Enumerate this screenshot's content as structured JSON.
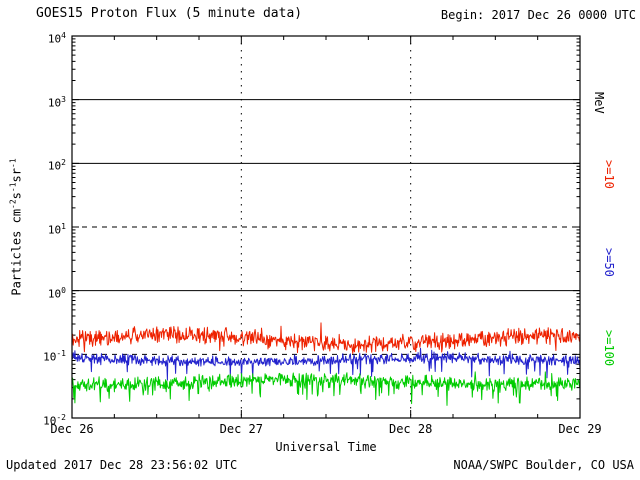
{
  "header": {
    "title": "GOES15 Proton Flux (5 minute data)",
    "begin": "Begin: 2017 Dec 26 0000 UTC"
  },
  "footer": {
    "updated": "Updated 2017 Dec 28 23:56:02 UTC",
    "source": "NOAA/SWPC Boulder, CO USA"
  },
  "chart_data": {
    "type": "line",
    "title": "GOES15 Proton Flux (5 minute data)",
    "xlabel": "Universal Time",
    "ylabel": "Particles cm-2s-1sr-1",
    "ylabel_segments": [
      {
        "text": "Particles  cm"
      },
      {
        "sup": "-2"
      },
      {
        "text": "s"
      },
      {
        "sup": "-1"
      },
      {
        "text": "sr"
      },
      {
        "sup": "-1"
      }
    ],
    "x_ticks": [
      "Dec 26",
      "Dec 27",
      "Dec 28",
      "Dec 29"
    ],
    "x_range_days": 3,
    "y_scale": "log",
    "ylim": [
      0.01,
      10000
    ],
    "y_tick_exponents": [
      4,
      3,
      2,
      1,
      0,
      -1,
      -2
    ],
    "right_axis_label": "MeV",
    "grid": {
      "hlines": [
        {
          "value": 1000,
          "style": "solid"
        },
        {
          "value": 100,
          "style": "solid"
        },
        {
          "value": 10,
          "style": "dashed"
        },
        {
          "value": 1,
          "style": "solid"
        },
        {
          "value": 0.1,
          "style": "dashed"
        }
      ],
      "vlines_days": [
        1,
        2
      ]
    },
    "legend_position": "right",
    "series": [
      {
        "name": ">=10",
        "unit": "MeV",
        "color": "#ee2200",
        "approx_mean": 0.17,
        "approx_min": 0.08,
        "approx_max": 0.45,
        "log_sigma": 0.16,
        "drift_amp": 0.07,
        "spike_prob": 0.012,
        "spike_mag": 0.22,
        "dip_prob": 0.01,
        "dip_mag": -0.15
      },
      {
        "name": ">=50",
        "unit": "MeV",
        "color": "#2222cc",
        "approx_mean": 0.082,
        "approx_min": 0.05,
        "approx_max": 0.14,
        "log_sigma": 0.1,
        "drift_amp": 0.03,
        "spike_prob": 0.008,
        "spike_mag": 0.12,
        "dip_prob": 0.03,
        "dip_mag": -0.22
      },
      {
        "name": ">=100",
        "unit": "MeV",
        "color": "#00cc00",
        "approx_mean": 0.037,
        "approx_min": 0.02,
        "approx_max": 0.065,
        "log_sigma": 0.13,
        "drift_amp": 0.04,
        "spike_prob": 0.01,
        "spike_mag": 0.12,
        "dip_prob": 0.05,
        "dip_mag": -0.22
      }
    ],
    "points_per_series": 864,
    "noise_seed": 20171226,
    "axis_color": "#000000",
    "background_color": "#ffffff"
  }
}
